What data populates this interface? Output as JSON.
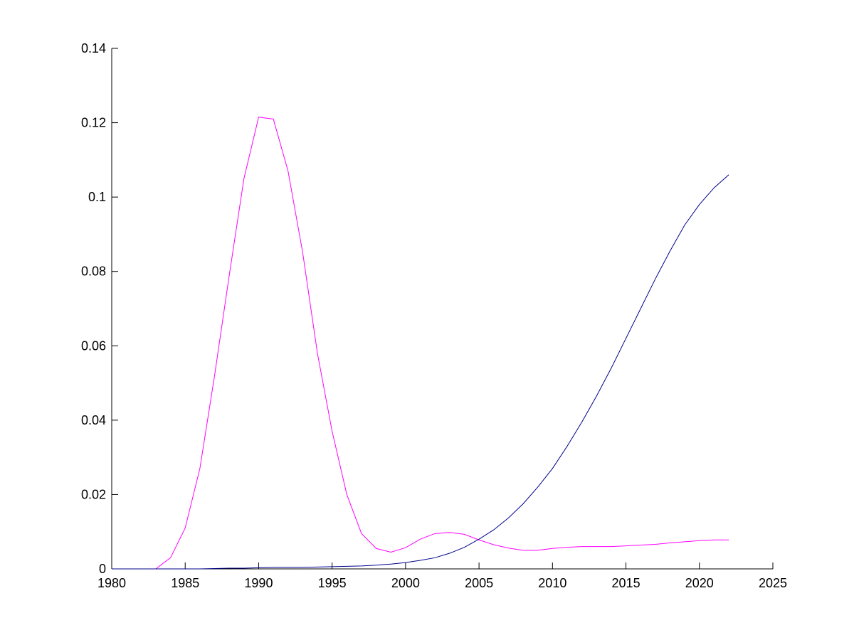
{
  "chart_data": {
    "type": "line",
    "x": [
      1980,
      1981,
      1982,
      1983,
      1984,
      1985,
      1986,
      1987,
      1988,
      1989,
      1990,
      1991,
      1992,
      1993,
      1994,
      1995,
      1996,
      1997,
      1998,
      1999,
      2000,
      2001,
      2002,
      2003,
      2004,
      2005,
      2006,
      2007,
      2008,
      2009,
      2010,
      2011,
      2012,
      2013,
      2014,
      2015,
      2016,
      2017,
      2018,
      2019,
      2020,
      2021,
      2022
    ],
    "series": [
      {
        "color": "#ff00ff",
        "values": [
          0,
          0,
          0,
          0,
          0.003,
          0.011,
          0.027,
          0.052,
          0.079,
          0.105,
          0.1215,
          0.121,
          0.107,
          0.085,
          0.058,
          0.037,
          0.02,
          0.0095,
          0.0055,
          0.0045,
          0.0057,
          0.008,
          0.0095,
          0.0098,
          0.0093,
          0.0078,
          0.0065,
          0.0056,
          0.005,
          0.005,
          0.0055,
          0.0058,
          0.006,
          0.006,
          0.006,
          0.0062,
          0.0064,
          0.0066,
          0.007,
          0.0073,
          0.0076,
          0.0078,
          0.0078
        ]
      },
      {
        "color": "#00008b",
        "values": [
          0,
          0,
          0,
          0,
          0,
          0,
          0,
          0.0001,
          0.0002,
          0.0002,
          0.0003,
          0.0004,
          0.0004,
          0.0004,
          0.0005,
          0.0006,
          0.0007,
          0.0008,
          0.001,
          0.0013,
          0.0017,
          0.0023,
          0.003,
          0.0042,
          0.0058,
          0.008,
          0.0105,
          0.0137,
          0.0175,
          0.022,
          0.027,
          0.033,
          0.0395,
          0.0465,
          0.054,
          0.062,
          0.07,
          0.078,
          0.0855,
          0.0925,
          0.098,
          0.1025,
          0.106
        ]
      }
    ],
    "xlim": [
      1980,
      2025
    ],
    "xticks": [
      1980,
      1985,
      1990,
      1995,
      2000,
      2005,
      2010,
      2015,
      2020,
      2025
    ],
    "ylim": [
      0,
      0.14
    ],
    "yticks": [
      0,
      0.02,
      0.04,
      0.06,
      0.08,
      0.1,
      0.12,
      0.14
    ]
  }
}
